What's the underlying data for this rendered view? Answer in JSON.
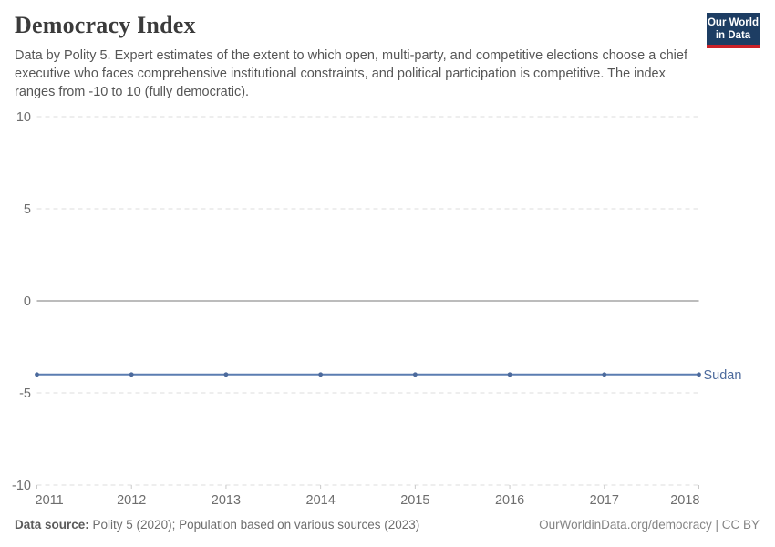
{
  "header": {
    "title": "Democracy Index",
    "subtitle": "Data by Polity 5. Expert estimates of the extent to which open, multi-party, and competitive elections choose a chief executive who faces comprehensive institutional constraints, and political participation is competitive. The index ranges from -10 to 10 (fully democratic).",
    "logo": {
      "line1": "Our World",
      "line2": "in Data",
      "background_color": "#1d3d63",
      "accent_color": "#cb2128"
    }
  },
  "chart_data": {
    "type": "line",
    "title": "Democracy Index",
    "subtitle": "Data by Polity 5. Expert estimates of the extent to which open, multi-party, and competitive elections choose a chief executive who faces comprehensive institutional constraints, and political participation is competitive. The index ranges from -10 to 10 (fully democratic).",
    "x": [
      2011,
      2012,
      2013,
      2014,
      2015,
      2016,
      2017,
      2018
    ],
    "series": [
      {
        "name": "Sudan",
        "values": [
          -4,
          -4,
          -4,
          -4,
          -4,
          -4,
          -4,
          -4
        ],
        "color": "#4c6a9c",
        "line_color": "#5b7db1"
      }
    ],
    "ylim": [
      -10,
      10
    ],
    "yticks": [
      10,
      5,
      0,
      -5,
      -10
    ],
    "xlabel": "",
    "ylabel": "",
    "grid": "horizontal-dashed",
    "zero_line": true,
    "legend": "end-of-line-label",
    "gridline_color": "#dedede",
    "zero_line_color": "#a5a5a5",
    "axis_label_color": "#6e6e6e"
  },
  "footer": {
    "source_label": "Data source:",
    "source_text": " Polity 5 (2020); Population based on various sources (2023)",
    "attribution": "OurWorldinData.org/democracy | CC BY"
  }
}
